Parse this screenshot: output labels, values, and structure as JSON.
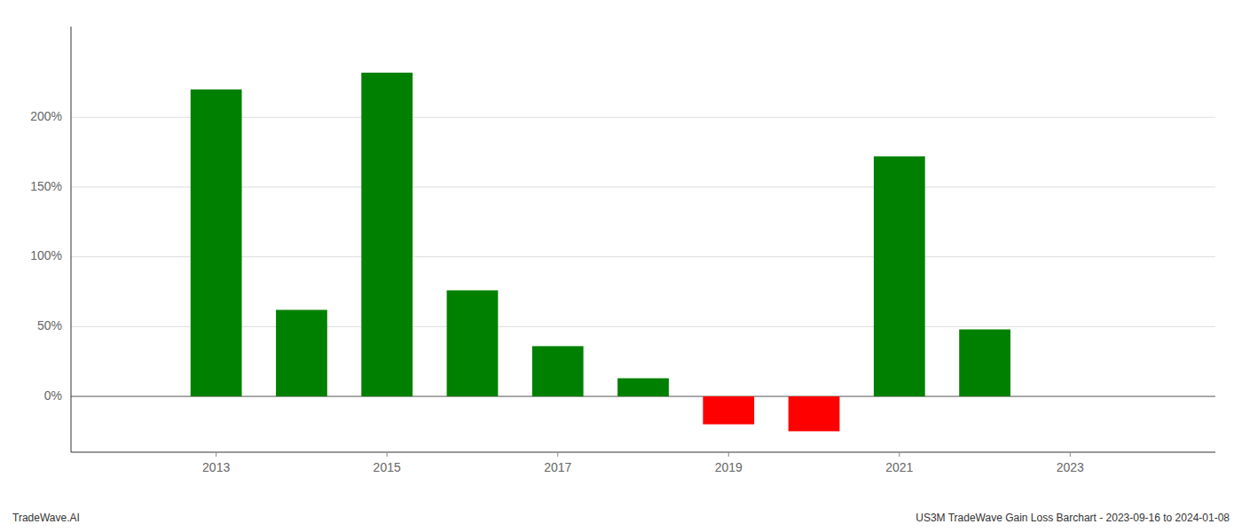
{
  "chart_data": {
    "type": "bar",
    "x": [
      2013,
      2014,
      2015,
      2016,
      2017,
      2018,
      2019,
      2020,
      2021,
      2022,
      2023
    ],
    "values": [
      2.2,
      0.62,
      2.32,
      0.76,
      0.36,
      0.13,
      -0.2,
      -0.25,
      1.72,
      0.48,
      null
    ],
    "colors": [
      "#008000",
      "#008000",
      "#008000",
      "#008000",
      "#008000",
      "#008000",
      "#ff0000",
      "#ff0000",
      "#008000",
      "#008000",
      null
    ],
    "xlim": [
      2011.3,
      2024.7
    ],
    "xticks": [
      2013,
      2015,
      2017,
      2019,
      2021,
      2023
    ],
    "ylim": [
      -0.4,
      2.65
    ],
    "yticks": [
      {
        "value": 0.0,
        "label": "0%"
      },
      {
        "value": 0.5,
        "label": "50%"
      },
      {
        "value": 1.0,
        "label": "100%"
      },
      {
        "value": 1.5,
        "label": "150%"
      },
      {
        "value": 2.0,
        "label": "200%"
      }
    ],
    "grid": true,
    "annotations": [
      "TradeWave.AI",
      "US3M TradeWave Gain Loss Barchart - 2023-09-16 to 2024-01-08"
    ]
  }
}
